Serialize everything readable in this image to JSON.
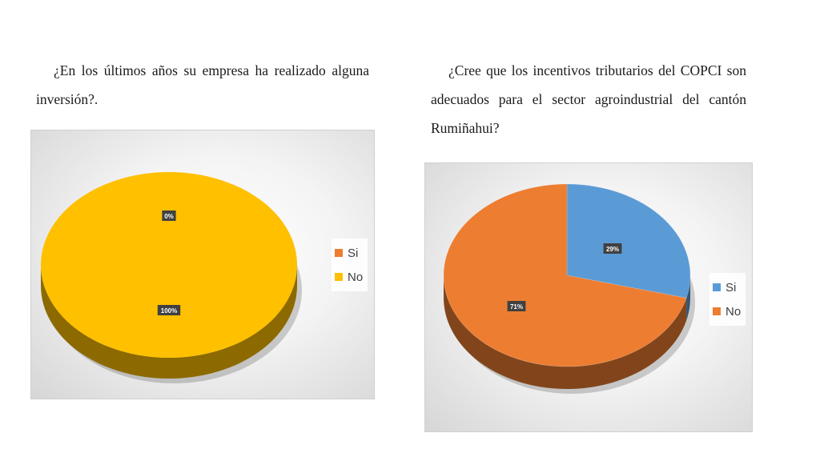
{
  "questions": {
    "q1": "¿En los últimos años su empresa ha realizado alguna inversión?.",
    "q2": "¿Cree que los incentivos tributarios del COPCI son adecuados para el sector agroindustrial del cantón Rumiñahui?"
  },
  "chart_data": [
    {
      "type": "pie",
      "style": "3d",
      "categories": [
        "Si",
        "No"
      ],
      "values": [
        0,
        100
      ],
      "data_labels": [
        "0%",
        "100%"
      ],
      "colors": [
        "#ED7D31",
        "#FFC000"
      ],
      "legend": {
        "entries": [
          "Si",
          "No"
        ],
        "placement": "right"
      }
    },
    {
      "type": "pie",
      "style": "3d",
      "categories": [
        "Si",
        "No"
      ],
      "values": [
        29,
        71
      ],
      "data_labels": [
        "29%",
        "71%"
      ],
      "colors": [
        "#5B9BD5",
        "#ED7D31"
      ],
      "legend": {
        "entries": [
          "Si",
          "No"
        ],
        "placement": "right"
      }
    }
  ]
}
